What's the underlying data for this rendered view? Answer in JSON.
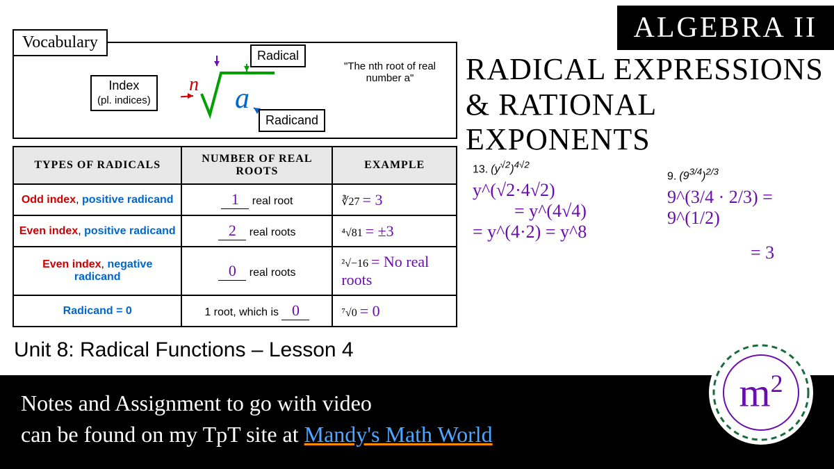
{
  "header": {
    "badge": "ALGEBRA II",
    "title": "RADICAL EXPRESSIONS & RATIONAL EXPONENTS"
  },
  "vocab": {
    "tab": "Vocabulary",
    "index_label": "Index",
    "index_sub": "(pl. indices)",
    "radical_label": "Radical",
    "radicand_label": "Radicand",
    "description": "\"The nth root of real number a\"",
    "n_symbol": "n",
    "a_symbol": "a",
    "colors": {
      "n": "#cc0000",
      "a": "#0066cc",
      "root": "#00a000",
      "arrow_green": "#00a000",
      "arrow_red": "#cc0000",
      "arrow_blue": "#0066cc"
    }
  },
  "table": {
    "headers": [
      "TYPES OF RADICALS",
      "NUMBER OF REAL ROOTS",
      "EXAMPLE"
    ],
    "rows": [
      {
        "type_parts": [
          {
            "t": "Odd index",
            "c": "red"
          },
          {
            "t": ", ",
            "c": ""
          },
          {
            "t": "positive radicand",
            "c": "blue"
          }
        ],
        "count_value": "1",
        "count_suffix": " real root",
        "example": "∛27 = 3"
      },
      {
        "type_parts": [
          {
            "t": "Even index",
            "c": "red"
          },
          {
            "t": ", ",
            "c": ""
          },
          {
            "t": "positive radicand",
            "c": "blue"
          }
        ],
        "count_value": "2",
        "count_suffix": " real roots",
        "example": "⁴√81 = ±3"
      },
      {
        "type_parts": [
          {
            "t": "Even index",
            "c": "red"
          },
          {
            "t": ", ",
            "c": ""
          },
          {
            "t": "negative radicand",
            "c": "blue"
          }
        ],
        "count_value": "0",
        "count_suffix": " real roots",
        "example": "²√−16 = No real roots"
      },
      {
        "type_parts": [
          {
            "t": "Radicand = 0",
            "c": "blue"
          }
        ],
        "count_prefix": "1 root, which is ",
        "count_value": "0",
        "count_suffix": "",
        "example": "⁷√0 = 0"
      }
    ]
  },
  "problems": {
    "p13": {
      "num": "13.",
      "expr": "(y^√2)^(4√2)",
      "line1": "y^(√2·4√2)",
      "line2": "= y^(4√4)",
      "line3": "= y^(4·2) = y^8"
    },
    "p9": {
      "num": "9.",
      "expr": "(9^(3/4))^(2/3)",
      "line1": "9^(3/4 · 2/3) = 9^(1/2)",
      "line2": "= 3"
    }
  },
  "unit": "Unit 8: Radical Functions – Lesson 4",
  "footer": {
    "line1": "Notes and Assignment to go with video",
    "line2": "can be found on my TpT site at ",
    "link": "Mandy's Math World"
  },
  "logo": {
    "m": "m",
    "sup": "2"
  },
  "colors": {
    "handwriting": "#6a0dad",
    "background": "#ffffff",
    "footer_bg": "#000000",
    "footer_text": "#ffffff",
    "link": "#4da6ff",
    "link_underline": "#ff8c00"
  }
}
